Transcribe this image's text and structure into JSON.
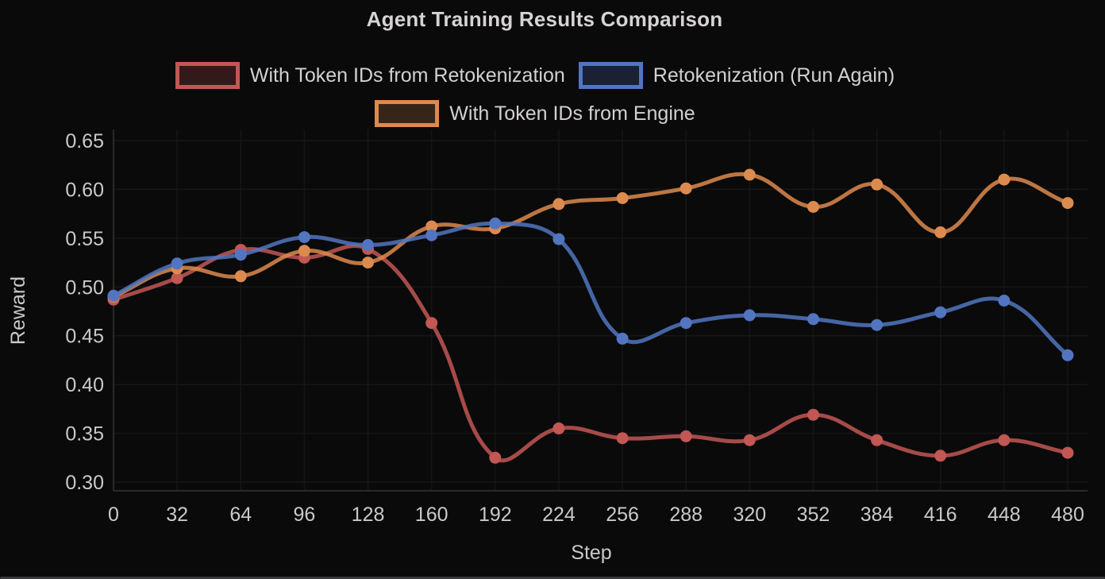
{
  "title": "Agent Training Results Comparison",
  "legend": [
    {
      "label": "With Token IDs from Retokenization",
      "color": "#c25754"
    },
    {
      "label": "Retokenization (Run Again)",
      "color": "#5175c0"
    },
    {
      "label": "With Token IDs from Engine",
      "color": "#dd8a4e"
    }
  ],
  "chart_data": {
    "type": "line",
    "title": "Agent Training Results Comparison",
    "xlabel": "Step",
    "ylabel": "Reward",
    "x": [
      0,
      32,
      64,
      96,
      128,
      160,
      192,
      224,
      256,
      288,
      320,
      352,
      384,
      416,
      448,
      480
    ],
    "yticks": [
      0.3,
      0.35,
      0.4,
      0.45,
      0.5,
      0.55,
      0.6,
      0.65
    ],
    "ylim": [
      0.29,
      0.66
    ],
    "grid": true,
    "legend_position": "top",
    "series": [
      {
        "name": "With Token IDs from Retokenization",
        "color": "#c25754",
        "values": [
          0.487,
          0.509,
          0.538,
          0.53,
          0.539,
          0.463,
          0.325,
          0.355,
          0.345,
          0.347,
          0.343,
          0.369,
          0.343,
          0.327,
          0.343,
          0.33
        ]
      },
      {
        "name": "Retokenization (Run Again)",
        "color": "#5175c0",
        "values": [
          0.491,
          0.524,
          0.533,
          0.551,
          0.543,
          0.553,
          0.565,
          0.549,
          0.447,
          0.463,
          0.471,
          0.467,
          0.461,
          0.474,
          0.486,
          0.43
        ]
      },
      {
        "name": "With Token IDs from Engine",
        "color": "#dd8a4e",
        "values": [
          0.49,
          0.519,
          0.511,
          0.537,
          0.525,
          0.562,
          0.56,
          0.585,
          0.591,
          0.601,
          0.615,
          0.582,
          0.605,
          0.556,
          0.61,
          0.586
        ]
      }
    ]
  },
  "colors": {
    "background": "#0a0a0b",
    "text": "#d4d0d2",
    "grid": "#161618",
    "axis": "#29292b"
  }
}
